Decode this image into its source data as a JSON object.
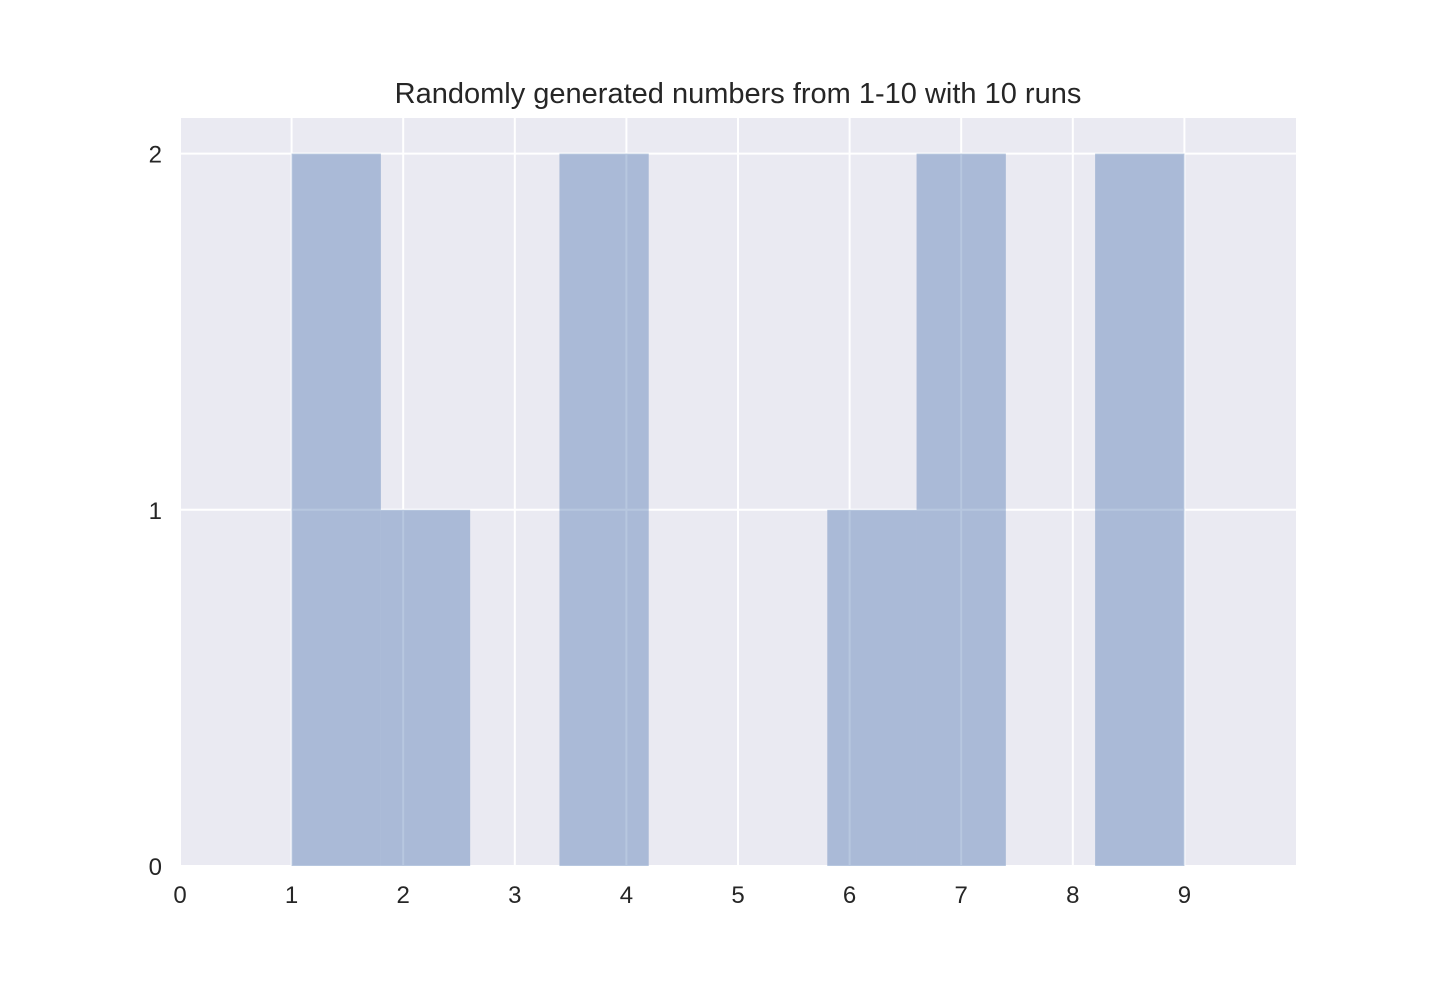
{
  "chart_data": {
    "type": "bar",
    "title": "Randomly generated numbers from 1-10 with 10 runs",
    "xlabel": "",
    "ylabel": "",
    "bins": [
      {
        "start": 1.0,
        "end": 1.8,
        "count": 2
      },
      {
        "start": 1.8,
        "end": 2.6,
        "count": 1
      },
      {
        "start": 2.6,
        "end": 3.4,
        "count": 0
      },
      {
        "start": 3.4,
        "end": 4.2,
        "count": 2
      },
      {
        "start": 4.2,
        "end": 5.0,
        "count": 0
      },
      {
        "start": 5.0,
        "end": 5.8,
        "count": 0
      },
      {
        "start": 5.8,
        "end": 6.6,
        "count": 1
      },
      {
        "start": 6.6,
        "end": 7.4,
        "count": 2
      },
      {
        "start": 7.4,
        "end": 8.2,
        "count": 0
      },
      {
        "start": 8.2,
        "end": 9.0,
        "count": 2
      }
    ],
    "xlim": [
      0,
      10
    ],
    "ylim": [
      0,
      2.1
    ],
    "xticks": [
      "0",
      "1",
      "2",
      "3",
      "4",
      "5",
      "6",
      "7",
      "8",
      "9"
    ],
    "yticks": [
      "0",
      "1",
      "2"
    ],
    "grid": true,
    "colors": {
      "bar": "#4c72b0",
      "bar_opacity": 0.4,
      "axes_background": "#eaeaf2",
      "grid": "#ffffff",
      "text": "#262626"
    }
  }
}
